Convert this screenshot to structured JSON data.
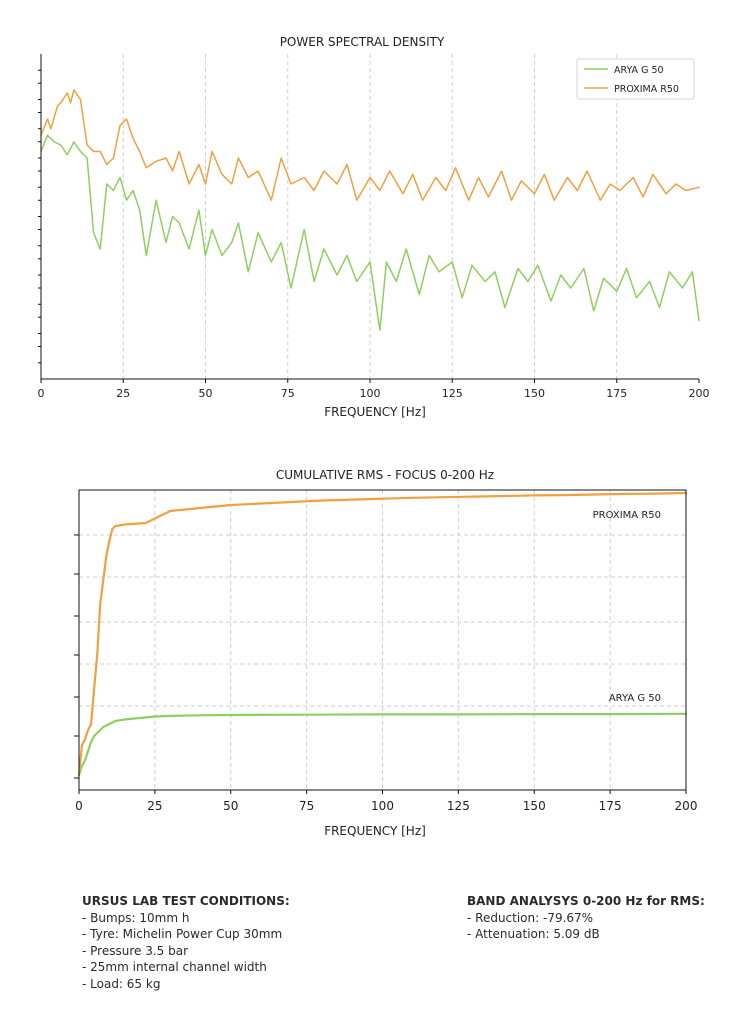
{
  "colors": {
    "arya": "#8fcf5f",
    "proxima": "#f0a040",
    "grid": "#cfcfcf",
    "axis": "#111111"
  },
  "chart_data": [
    {
      "type": "line",
      "title": "POWER SPECTRAL DENSITY",
      "xlabel": "FREQUENCY [Hz]",
      "ylabel": "",
      "xlim": [
        0,
        200
      ],
      "ylim": [
        0,
        100
      ],
      "y_unlabeled": true,
      "xticks": [
        0,
        25,
        50,
        75,
        100,
        125,
        150,
        175,
        200
      ],
      "grid": true,
      "legend_position": "top-right",
      "series": [
        {
          "name": "ARYA G 50",
          "color": "#8fcf5f",
          "x": [
            0,
            2,
            4,
            6,
            8,
            10,
            12,
            14,
            16,
            18,
            20,
            22,
            24,
            26,
            28,
            30,
            32,
            35,
            38,
            40,
            42,
            45,
            48,
            50,
            52,
            55,
            58,
            60,
            63,
            66,
            70,
            73,
            76,
            80,
            83,
            86,
            90,
            93,
            96,
            100,
            103,
            105,
            108,
            111,
            115,
            118,
            121,
            125,
            128,
            131,
            135,
            138,
            141,
            145,
            148,
            151,
            155,
            158,
            161,
            165,
            168,
            171,
            175,
            178,
            181,
            185,
            188,
            191,
            195,
            198,
            200
          ],
          "y": [
            70,
            75,
            73,
            72,
            69,
            73,
            70,
            68,
            45,
            40,
            60,
            58,
            62,
            55,
            58,
            52,
            38,
            55,
            42,
            50,
            48,
            40,
            52,
            38,
            46,
            38,
            42,
            48,
            33,
            45,
            36,
            42,
            28,
            46,
            30,
            40,
            32,
            38,
            30,
            36,
            15,
            36,
            30,
            40,
            26,
            38,
            33,
            36,
            25,
            35,
            30,
            33,
            22,
            34,
            30,
            35,
            24,
            32,
            28,
            34,
            21,
            31,
            27,
            34,
            25,
            30,
            22,
            33,
            28,
            33,
            18
          ]
        },
        {
          "name": "PROXIMA R50",
          "color": "#f0a040",
          "x": [
            0,
            2,
            3,
            5,
            6,
            8,
            9,
            10,
            12,
            14,
            16,
            18,
            20,
            22,
            24,
            26,
            28,
            30,
            32,
            35,
            38,
            40,
            42,
            45,
            48,
            50,
            52,
            55,
            58,
            60,
            63,
            66,
            70,
            73,
            76,
            80,
            83,
            86,
            90,
            93,
            96,
            100,
            103,
            106,
            110,
            113,
            116,
            120,
            123,
            126,
            130,
            133,
            136,
            140,
            143,
            146,
            150,
            153,
            156,
            160,
            163,
            166,
            170,
            173,
            176,
            180,
            183,
            186,
            190,
            193,
            196,
            200
          ],
          "y": [
            75,
            80,
            77,
            84,
            85,
            88,
            85,
            89,
            86,
            72,
            70,
            70,
            66,
            68,
            78,
            80,
            74,
            70,
            65,
            67,
            68,
            64,
            70,
            60,
            66,
            60,
            70,
            63,
            60,
            68,
            62,
            64,
            55,
            68,
            60,
            62,
            58,
            64,
            60,
            66,
            55,
            62,
            58,
            64,
            57,
            63,
            55,
            62,
            58,
            65,
            55,
            62,
            56,
            64,
            55,
            61,
            57,
            63,
            55,
            62,
            58,
            64,
            55,
            60,
            58,
            62,
            56,
            63,
            57,
            60,
            58,
            59
          ]
        }
      ]
    },
    {
      "type": "line",
      "title": "CUMULATIVE RMS - FOCUS 0-200 Hz",
      "xlabel": "FREQUENCY [Hz]",
      "ylabel": "",
      "xlim": [
        0,
        200
      ],
      "ylim": [
        0,
        100
      ],
      "y_unlabeled": true,
      "xticks": [
        0,
        25,
        50,
        75,
        100,
        125,
        150,
        175,
        200
      ],
      "grid": true,
      "legend_position": "inline labels",
      "series": [
        {
          "name": "PROXIMA R50",
          "color": "#f0a040",
          "x": [
            0,
            1,
            2,
            3,
            4,
            5,
            6,
            7,
            8,
            9,
            10,
            11,
            12,
            15,
            18,
            22,
            24,
            26,
            28,
            30,
            35,
            40,
            45,
            50,
            60,
            70,
            80,
            90,
            100,
            110,
            120,
            130,
            140,
            150,
            160,
            170,
            180,
            190,
            200
          ],
          "y": [
            5,
            15,
            17,
            20,
            22,
            34,
            45,
            62,
            70,
            78,
            83,
            87,
            88,
            88.5,
            88.7,
            89,
            90,
            91,
            92,
            93,
            93.5,
            94,
            94.5,
            95,
            95.5,
            96,
            96.5,
            96.8,
            97.1,
            97.4,
            97.6,
            97.8,
            98,
            98.2,
            98.3,
            98.5,
            98.7,
            98.8,
            99
          ]
        },
        {
          "name": "ARYA G 50",
          "color": "#8fcf5f",
          "x": [
            0,
            1,
            2,
            3,
            4,
            5,
            6,
            8,
            10,
            12,
            15,
            20,
            25,
            30,
            40,
            50,
            75,
            100,
            125,
            150,
            175,
            200
          ],
          "y": [
            5,
            8,
            10,
            13,
            16,
            18,
            19,
            21,
            22,
            23,
            23.5,
            24,
            24.5,
            24.7,
            24.9,
            25,
            25.1,
            25.2,
            25.2,
            25.3,
            25.3,
            25.4
          ]
        }
      ]
    }
  ],
  "notes": {
    "conditions": {
      "title": "URSUS LAB TEST CONDITIONS:",
      "items": [
        "- Bumps: 10mm h",
        "- Tyre: Michelin Power Cup 30mm",
        "- Pressure 3.5 bar",
        "- 25mm internal channel width",
        "- Load: 65 kg"
      ]
    },
    "band": {
      "title": "BAND ANALYSYS 0-200 Hz for RMS:",
      "items": [
        "- Reduction: -79.67%",
        "- Attenuation: 5.09 dB"
      ]
    }
  }
}
